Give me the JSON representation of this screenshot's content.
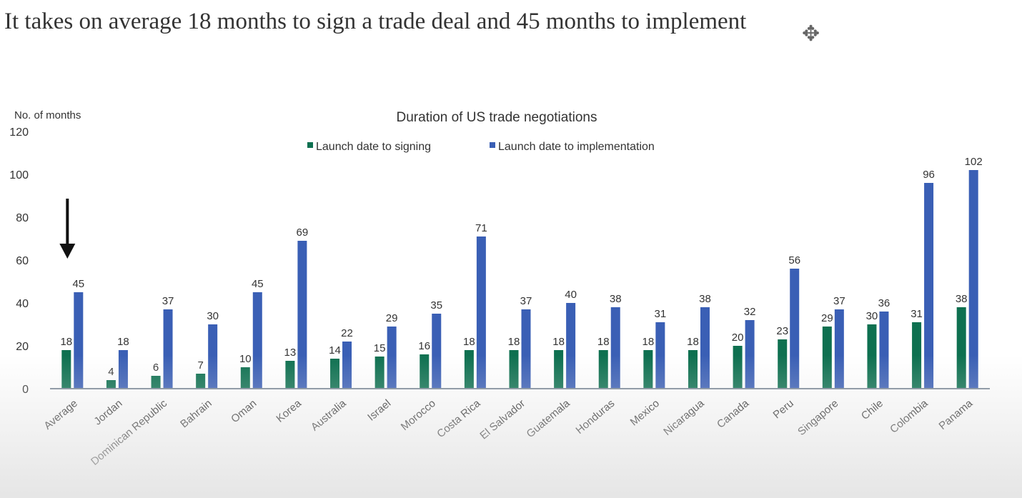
{
  "slide": {
    "title": "It takes on average 18 months to sign a trade deal and 45 months to implement"
  },
  "icons": {
    "cursor": "move-cursor-icon",
    "annotation": "down-arrow-icon"
  },
  "colors": {
    "signing": "#0e7050",
    "implementation": "#3a5fb5",
    "axis": "#7e8b99",
    "arrow": "#111111"
  },
  "chart_data": {
    "type": "bar",
    "title": "Duration of US trade negotiations",
    "ylabel": "No. of months",
    "xlabel": "",
    "ylim": [
      0,
      120
    ],
    "yticks": [
      0,
      20,
      40,
      60,
      80,
      100,
      120
    ],
    "grid": false,
    "legend": "top-center",
    "categories": [
      "Average",
      "Jordan",
      "Dominican Republic",
      "Bahrain",
      "Oman",
      "Korea",
      "Australia",
      "Israel",
      "Morocco",
      "Costa Rica",
      "El Salvador",
      "Guatemala",
      "Honduras",
      "Mexico",
      "Nicaragua",
      "Canada",
      "Peru",
      "Singapore",
      "Chile",
      "Colombia",
      "Panama"
    ],
    "series": [
      {
        "name": "Launch date to signing",
        "values": [
          18,
          4,
          6,
          7,
          10,
          13,
          14,
          15,
          16,
          18,
          18,
          18,
          18,
          18,
          18,
          20,
          23,
          29,
          30,
          31,
          38
        ]
      },
      {
        "name": "Launch date to implementation",
        "values": [
          45,
          18,
          37,
          30,
          45,
          69,
          22,
          29,
          35,
          71,
          37,
          40,
          38,
          31,
          38,
          32,
          56,
          37,
          36,
          96,
          102
        ]
      }
    ],
    "annotation": {
      "type": "down-arrow",
      "category": "Average"
    }
  }
}
